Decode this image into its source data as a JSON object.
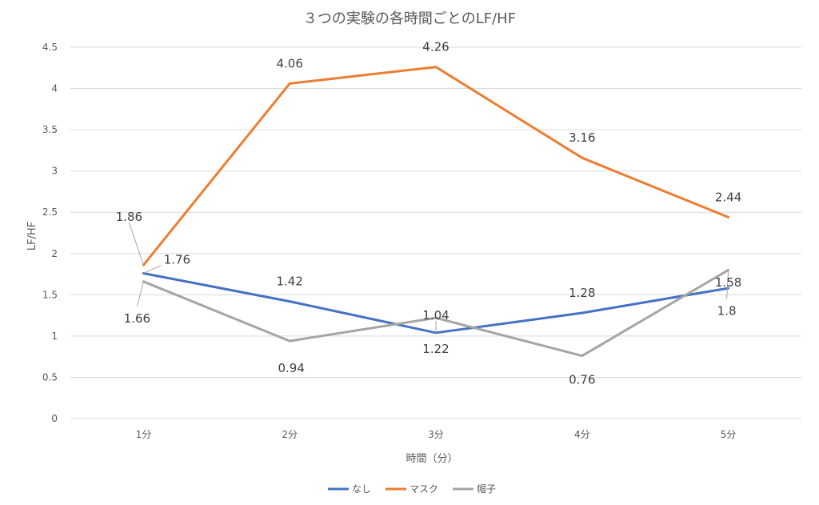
{
  "chart_data": {
    "type": "line",
    "title": "３つの実験の各時間ごとのLF/HF",
    "xlabel": "時間（分）",
    "ylabel": "LF/HF",
    "categories": [
      "1分",
      "2分",
      "3分",
      "4分",
      "5分"
    ],
    "ylim": [
      0,
      4.5
    ],
    "yticks": [
      "0",
      "0.5",
      "1",
      "1.5",
      "2",
      "2.5",
      "3",
      "3.5",
      "4",
      "4.5"
    ],
    "grid": true,
    "legend_position": "bottom",
    "series": [
      {
        "name": "なし",
        "values": [
          1.76,
          1.42,
          1.04,
          1.28,
          1.58
        ],
        "color": "#4472C4"
      },
      {
        "name": "マスク",
        "values": [
          1.86,
          4.06,
          4.26,
          3.16,
          2.44
        ],
        "color": "#ED7D31"
      },
      {
        "name": "帽子",
        "values": [
          1.66,
          0.94,
          1.22,
          0.76,
          1.8
        ],
        "color": "#A5A5A5"
      }
    ],
    "data_labels": [
      {
        "series": 1,
        "index": 0,
        "text": "1.86"
      },
      {
        "series": 1,
        "index": 1,
        "text": "4.06"
      },
      {
        "series": 1,
        "index": 2,
        "text": "4.26"
      },
      {
        "series": 1,
        "index": 3,
        "text": "3.16"
      },
      {
        "series": 1,
        "index": 4,
        "text": "2.44"
      },
      {
        "series": 0,
        "index": 0,
        "text": "1.76"
      },
      {
        "series": 0,
        "index": 1,
        "text": "1.42"
      },
      {
        "series": 0,
        "index": 2,
        "text": "1.04"
      },
      {
        "series": 0,
        "index": 3,
        "text": "1.28"
      },
      {
        "series": 0,
        "index": 4,
        "text": "1.58"
      },
      {
        "series": 2,
        "index": 0,
        "text": "1.66"
      },
      {
        "series": 2,
        "index": 1,
        "text": "0.94"
      },
      {
        "series": 2,
        "index": 2,
        "text": "1.22"
      },
      {
        "series": 2,
        "index": 3,
        "text": "0.76"
      },
      {
        "series": 2,
        "index": 4,
        "text": "1.8"
      }
    ]
  }
}
